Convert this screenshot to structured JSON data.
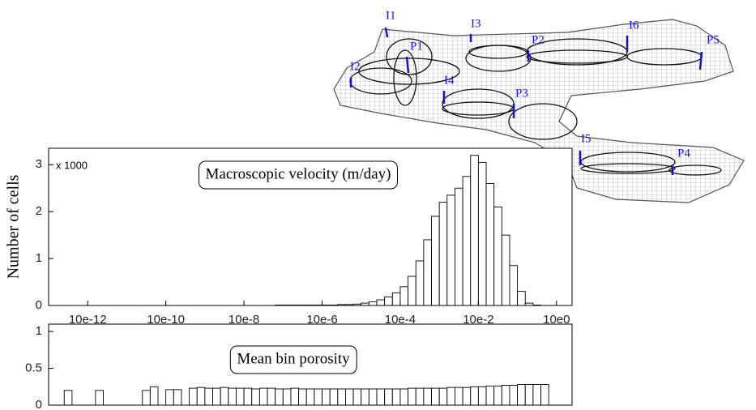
{
  "mesh_labels": [
    "I1",
    "I3",
    "P2",
    "I6",
    "P5",
    "P1",
    "I2",
    "I4",
    "P3",
    "I5",
    "P4"
  ],
  "chart_data": [
    {
      "type": "histogram",
      "ylabel": "Number of cells",
      "multiplier": "x 1000",
      "annotation": "Macroscopic velocity (m/day)",
      "log_x": true,
      "xlim": [
        1e-13,
        2.5
      ],
      "ylim": [
        0,
        3.35
      ],
      "xticks": [
        {
          "value": 1e-12,
          "label": "10e-12"
        },
        {
          "value": 1e-10,
          "label": "10e-10"
        },
        {
          "value": 1e-08,
          "label": "10e-8"
        },
        {
          "value": 1e-06,
          "label": "10e-6"
        },
        {
          "value": 0.0001,
          "label": "10e-4"
        },
        {
          "value": 0.01,
          "label": "10e-2"
        },
        {
          "value": 1,
          "label": "10e0"
        }
      ],
      "yticks": [
        0,
        1,
        2,
        3
      ],
      "bins": [
        2.512e-13,
        3.981e-13,
        6.31e-13,
        1e-12,
        1.585e-12,
        2.512e-12,
        3.981e-12,
        6.31e-12,
        1e-11,
        1.585e-11,
        2.512e-11,
        3.981e-11,
        6.31e-11,
        1e-10,
        1.585e-10,
        2.512e-10,
        3.981e-10,
        6.31e-10,
        1e-09,
        1.585e-09,
        2.512e-09,
        3.981e-09,
        6.31e-09,
        1e-08,
        1.585e-08,
        2.512e-08,
        3.981e-08,
        6.31e-08,
        1e-07,
        1.585e-07,
        2.512e-07,
        3.981e-07,
        6.31e-07,
        1e-06,
        1.585e-06,
        2.512e-06,
        3.981e-06,
        6.31e-06,
        1e-05,
        1.585e-05,
        2.512e-05,
        3.981e-05,
        6.31e-05,
        0.0001,
        0.0001585,
        0.0002512,
        0.0003981,
        0.000631,
        0.001,
        0.001585,
        0.002512,
        0.003981,
        0.00631,
        0.01,
        0.01585,
        0.02512,
        0.03981,
        0.0631,
        0.1,
        0.1585,
        0.2512,
        0.3981,
        0.631,
        1,
        1.585,
        2.512
      ],
      "values": [
        0,
        0,
        0,
        0,
        0,
        0,
        0,
        0,
        0,
        0,
        0,
        0,
        0,
        0,
        0,
        0,
        0,
        0,
        0,
        0,
        0,
        0,
        0,
        0,
        0,
        0,
        0,
        0.01,
        0.01,
        0.01,
        0.01,
        0.01,
        0.01,
        0.01,
        0.01,
        0.02,
        0.02,
        0.03,
        0.05,
        0.08,
        0.12,
        0.18,
        0.27,
        0.4,
        0.62,
        0.95,
        1.4,
        1.9,
        2.2,
        2.35,
        2.5,
        2.75,
        3.2,
        3.05,
        2.6,
        2.1,
        1.5,
        0.85,
        0.3,
        0.05,
        0.01,
        0,
        0,
        0,
        0
      ]
    },
    {
      "type": "histogram",
      "annotation": "Mean bin porosity",
      "log_x": true,
      "xlim": [
        1e-13,
        2.5
      ],
      "ylim": [
        0,
        1.1
      ],
      "yticks": [
        0,
        0.5,
        1
      ],
      "bins": [
        2.512e-13,
        3.981e-13,
        6.31e-13,
        1e-12,
        1.585e-12,
        2.512e-12,
        3.981e-12,
        6.31e-12,
        1e-11,
        1.585e-11,
        2.512e-11,
        3.981e-11,
        6.31e-11,
        1e-10,
        1.585e-10,
        2.512e-10,
        3.981e-10,
        6.31e-10,
        1e-09,
        1.585e-09,
        2.512e-09,
        3.981e-09,
        6.31e-09,
        1e-08,
        1.585e-08,
        2.512e-08,
        3.981e-08,
        6.31e-08,
        1e-07,
        1.585e-07,
        2.512e-07,
        3.981e-07,
        6.31e-07,
        1e-06,
        1.585e-06,
        2.512e-06,
        3.981e-06,
        6.31e-06,
        1e-05,
        1.585e-05,
        2.512e-05,
        3.981e-05,
        6.31e-05,
        0.0001,
        0.0001585,
        0.0002512,
        0.0003981,
        0.000631,
        0.001,
        0.001585,
        0.002512,
        0.003981,
        0.00631,
        0.01,
        0.01585,
        0.02512,
        0.03981,
        0.0631,
        0.1,
        0.1585,
        0.2512,
        0.3981,
        0.631,
        1,
        1.585,
        2.512
      ],
      "values": [
        0.2,
        null,
        null,
        null,
        0.2,
        null,
        null,
        null,
        null,
        null,
        0.2,
        0.25,
        null,
        0.21,
        0.21,
        null,
        0.23,
        0.24,
        0.23,
        0.23,
        0.24,
        0.23,
        0.23,
        0.23,
        0.22,
        0.23,
        0.23,
        0.22,
        0.22,
        0.23,
        0.22,
        0.22,
        0.22,
        0.22,
        0.22,
        0.22,
        0.22,
        0.22,
        0.22,
        0.22,
        0.22,
        0.22,
        0.22,
        0.22,
        0.23,
        0.23,
        0.23,
        0.23,
        0.23,
        0.24,
        0.24,
        0.24,
        0.25,
        0.25,
        0.26,
        0.26,
        0.27,
        0.27,
        0.28,
        0.28,
        0.28,
        0.28,
        null,
        null,
        null
      ]
    }
  ]
}
